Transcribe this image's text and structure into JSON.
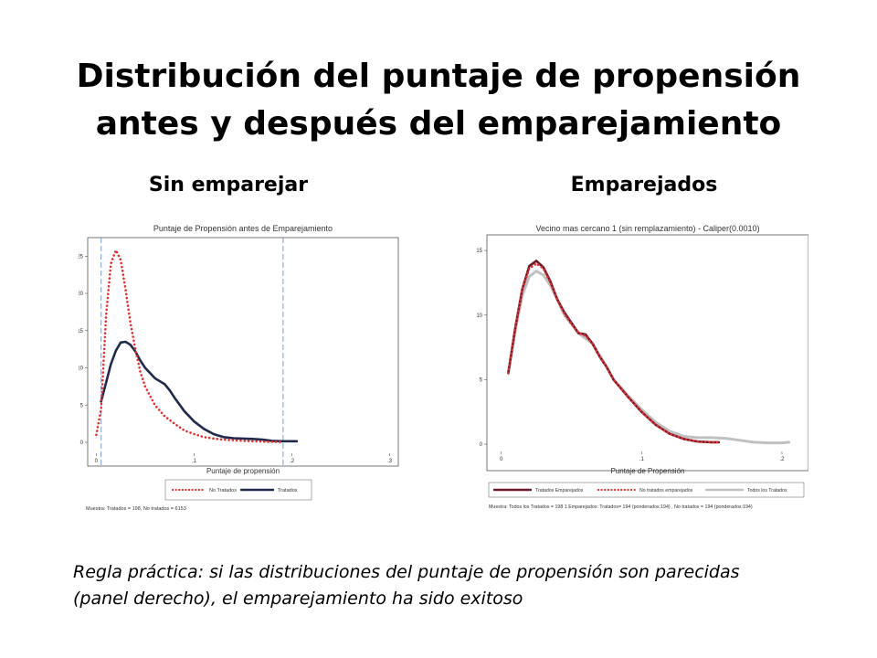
{
  "slide": {
    "title_line1": "Distribución del puntaje de propensión",
    "title_line2": "antes y después del emparejamiento",
    "label_left": "Sin emparejar",
    "label_right": "Emparejados",
    "note_line1": "Regla práctica:  si las distribuciones del puntaje de propensión son parecidas",
    "note_line2": "(panel derecho), el emparejamiento ha sido exitoso"
  },
  "chart_data": [
    {
      "type": "line",
      "title": "Puntaje de Propensión antes de Emparejamiento",
      "xlabel": "Puntaje de propensión",
      "ylabel": "",
      "xlim": [
        -0.005,
        0.305
      ],
      "ylim": [
        0,
        27
      ],
      "xticks": [
        "0",
        ".1",
        ".2",
        ".3"
      ],
      "xtick_values": [
        0,
        0.1,
        0.2,
        0.3
      ],
      "yticks": [
        "0",
        "5",
        "10",
        "15",
        "20",
        "25"
      ],
      "ytick_values": [
        0,
        5,
        10,
        15,
        20,
        25
      ],
      "vlines": [
        0.005,
        0.191
      ],
      "series": [
        {
          "name": "No Tratados",
          "style": "dotted",
          "color": "#e03030",
          "x": [
            0.0,
            0.005,
            0.01,
            0.015,
            0.02,
            0.025,
            0.03,
            0.035,
            0.04,
            0.045,
            0.05,
            0.06,
            0.07,
            0.08,
            0.09,
            0.1,
            0.11,
            0.12,
            0.13,
            0.15,
            0.17,
            0.19
          ],
          "y": [
            1.0,
            4.5,
            17.0,
            24.0,
            25.8,
            24.5,
            20.5,
            16.0,
            12.5,
            9.5,
            7.5,
            5.0,
            3.5,
            2.5,
            1.6,
            1.1,
            0.7,
            0.5,
            0.35,
            0.2,
            0.1,
            0.05
          ]
        },
        {
          "name": "Tratados",
          "style": "solid",
          "color": "#1f2a4d",
          "x": [
            0.005,
            0.01,
            0.015,
            0.02,
            0.025,
            0.03,
            0.035,
            0.04,
            0.045,
            0.05,
            0.055,
            0.06,
            0.065,
            0.07,
            0.075,
            0.08,
            0.09,
            0.1,
            0.11,
            0.12,
            0.13,
            0.14,
            0.15,
            0.16,
            0.17,
            0.18,
            0.19,
            0.2,
            0.205
          ],
          "y": [
            5.5,
            8.0,
            10.5,
            12.3,
            13.4,
            13.5,
            13.1,
            12.2,
            11.0,
            10.0,
            9.3,
            8.6,
            8.2,
            7.8,
            7.0,
            6.0,
            4.2,
            2.8,
            1.8,
            1.1,
            0.7,
            0.55,
            0.5,
            0.45,
            0.35,
            0.2,
            0.15,
            0.15,
            0.15
          ]
        }
      ],
      "legend": [
        "No Tratados",
        "Tratados"
      ],
      "legend_position": "bottom",
      "footnote": "Muestra: Tratados = 198,  No tratados = 6153"
    },
    {
      "type": "line",
      "title": "Vecino mas cercano 1 (sin remplazamiento) - Caliper(0.0010)",
      "xlabel": "Puntaje de Propensión",
      "ylabel": "",
      "xlim": [
        -0.005,
        0.215
      ],
      "ylim": [
        0,
        16
      ],
      "xticks": [
        "0",
        ".1",
        ".2"
      ],
      "xtick_values": [
        0,
        0.1,
        0.2
      ],
      "yticks": [
        "0",
        "5",
        "10",
        "15"
      ],
      "ytick_values": [
        0,
        5,
        10,
        15
      ],
      "series": [
        {
          "name": "Tratados Emparejados",
          "style": "solid",
          "color": "#6b1a2a",
          "x": [
            0.005,
            0.01,
            0.015,
            0.02,
            0.025,
            0.03,
            0.035,
            0.04,
            0.045,
            0.05,
            0.055,
            0.06,
            0.065,
            0.07,
            0.075,
            0.08,
            0.09,
            0.1,
            0.11,
            0.12,
            0.13,
            0.14,
            0.15,
            0.155
          ],
          "y": [
            5.5,
            9.0,
            12.0,
            13.8,
            14.2,
            13.7,
            12.6,
            11.2,
            10.2,
            9.4,
            8.6,
            8.5,
            7.8,
            6.8,
            6.0,
            5.0,
            3.7,
            2.5,
            1.5,
            0.8,
            0.4,
            0.2,
            0.15,
            0.15
          ]
        },
        {
          "name": "No tratados emparejados",
          "style": "dotted",
          "color": "#e03030",
          "x": [
            0.005,
            0.01,
            0.015,
            0.02,
            0.025,
            0.03,
            0.035,
            0.04,
            0.045,
            0.05,
            0.055,
            0.06,
            0.065,
            0.07,
            0.075,
            0.08,
            0.09,
            0.1,
            0.11,
            0.12,
            0.13,
            0.14,
            0.15,
            0.155
          ],
          "y": [
            5.5,
            9.0,
            12.0,
            13.6,
            14.0,
            13.6,
            12.5,
            11.2,
            10.1,
            9.3,
            8.6,
            8.4,
            7.8,
            6.8,
            6.0,
            5.0,
            3.7,
            2.5,
            1.5,
            0.8,
            0.4,
            0.2,
            0.15,
            0.15
          ]
        },
        {
          "name": "Todos los Tratados",
          "style": "solid",
          "color": "#c0c0c0",
          "x": [
            0.005,
            0.01,
            0.015,
            0.02,
            0.025,
            0.03,
            0.035,
            0.04,
            0.045,
            0.05,
            0.055,
            0.06,
            0.065,
            0.07,
            0.075,
            0.08,
            0.09,
            0.1,
            0.11,
            0.12,
            0.13,
            0.14,
            0.15,
            0.16,
            0.17,
            0.18,
            0.19,
            0.2,
            0.205
          ],
          "y": [
            5.5,
            8.8,
            11.5,
            13.0,
            13.4,
            13.1,
            12.3,
            11.2,
            10.0,
            9.3,
            8.6,
            8.2,
            7.8,
            6.9,
            6.0,
            5.0,
            3.8,
            2.7,
            1.7,
            1.0,
            0.6,
            0.5,
            0.5,
            0.45,
            0.3,
            0.15,
            0.1,
            0.1,
            0.15
          ]
        }
      ],
      "legend": [
        "Tratados Emparejados",
        "No tratados emparejados",
        "Todos los Tratados"
      ],
      "legend_position": "bottom",
      "footnote": "Muestra: Todos los Tratados = 198    1    Emparejados: Tratados= 194 (ponderados:194)  ,  No tratados = 194 (ponderados:194)"
    }
  ]
}
